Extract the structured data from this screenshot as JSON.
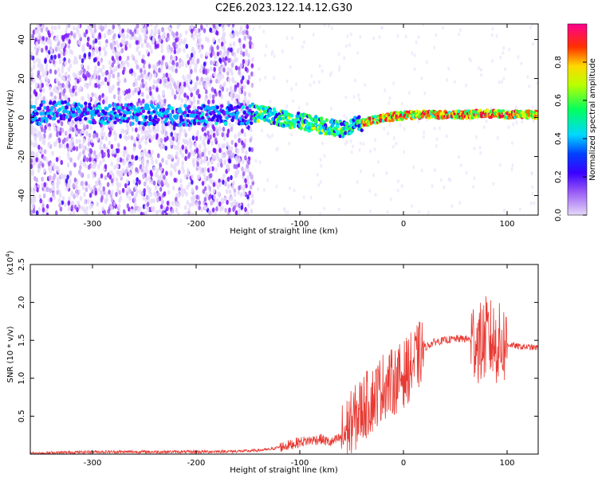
{
  "title": "C2E6.2023.122.14.12.G30",
  "chart_data": [
    {
      "type": "heatmap",
      "xlabel": "Height of straight line (km)",
      "ylabel": "Frequency (Hz)",
      "xlim": [
        -360,
        130
      ],
      "ylim": [
        -50,
        48
      ],
      "xticks": [
        -300,
        -200,
        -100,
        0,
        100
      ],
      "yticks": [
        -40,
        -20,
        0,
        20,
        40
      ],
      "colorbar": {
        "label": "Normalized spectral amplitude",
        "range": [
          0.0,
          1.0
        ],
        "ticks": [
          0.0,
          0.2,
          0.4,
          0.6,
          0.8
        ],
        "colormap": [
          "#e5d8f8",
          "#7b00ff",
          "#0000ff",
          "#00e5ff",
          "#00ff44",
          "#ffff00",
          "#ff4000",
          "#ff00a0"
        ]
      },
      "band_center": [
        {
          "x": -350,
          "y": 3
        },
        {
          "x": -320,
          "y": 3
        },
        {
          "x": -290,
          "y": 2
        },
        {
          "x": -210,
          "y": 1
        },
        {
          "x": -140,
          "y": 2
        },
        {
          "x": -120,
          "y": 0
        },
        {
          "x": -100,
          "y": -2
        },
        {
          "x": -80,
          "y": -4
        },
        {
          "x": -60,
          "y": -6
        },
        {
          "x": -40,
          "y": -3
        },
        {
          "x": -20,
          "y": 0
        },
        {
          "x": 0,
          "y": 1
        },
        {
          "x": 20,
          "y": 1.5
        },
        {
          "x": 60,
          "y": 1.5
        },
        {
          "x": 80,
          "y": 2
        },
        {
          "x": 100,
          "y": 1.5
        },
        {
          "x": 130,
          "y": 1.5
        }
      ]
    },
    {
      "type": "line",
      "xlabel": "Height of straight line (km)",
      "ylabel": "SNR (10 * v/v)",
      "multiplier": "(x10",
      "multiplier_exp": "4",
      "multiplier_close": ")",
      "xlim": [
        -360,
        130
      ],
      "ylim": [
        0,
        2.5
      ],
      "xticks": [
        -300,
        -200,
        -100,
        0,
        100
      ],
      "yticks": [
        0.5,
        1.0,
        1.5,
        2.0,
        2.5
      ],
      "ytick_labels": [
        "0.5",
        "1.0",
        "1.5",
        "2.0",
        "2.5"
      ],
      "color": "#e83a33",
      "series": [
        {
          "x": [
            -360,
            -300,
            -200,
            -150,
            -130,
            -110,
            -100,
            -90,
            -80,
            -70,
            -60,
            -50,
            -40,
            -30,
            -20,
            -10,
            0,
            10,
            20,
            30,
            40,
            50,
            60,
            70,
            75,
            80,
            85,
            90,
            100,
            110,
            130
          ],
          "y": [
            0.01,
            0.03,
            0.03,
            0.04,
            0.06,
            0.12,
            0.16,
            0.18,
            0.2,
            0.15,
            0.22,
            0.4,
            0.6,
            0.72,
            0.9,
            0.95,
            1.05,
            1.2,
            1.4,
            1.48,
            1.5,
            1.52,
            1.52,
            1.5,
            1.45,
            1.55,
            1.5,
            1.45,
            1.45,
            1.42,
            1.4
          ]
        }
      ]
    }
  ]
}
